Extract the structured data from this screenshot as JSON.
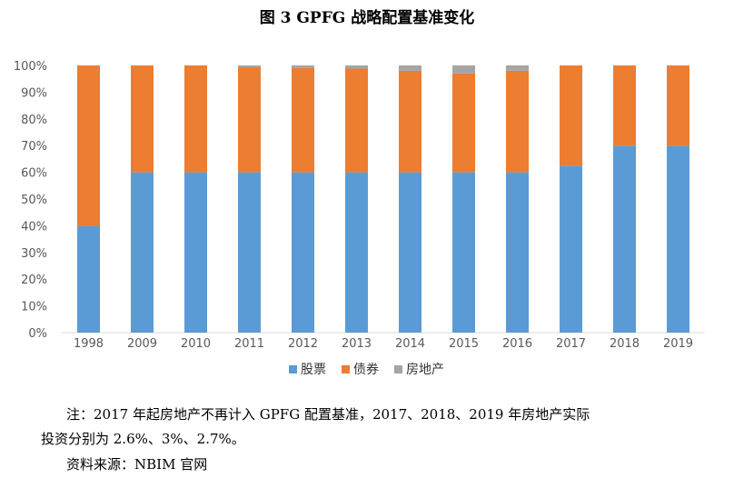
{
  "chart_data": {
    "type": "bar",
    "stacked": true,
    "title": "图 3  GPFG 战略配置基准变化",
    "categories": [
      "1998",
      "2009",
      "2010",
      "2011",
      "2012",
      "2013",
      "2014",
      "2015",
      "2016",
      "2017",
      "2018",
      "2019"
    ],
    "series": [
      {
        "name": "股票",
        "color": "#5B9BD5",
        "values": [
          40,
          60,
          60,
          60,
          60,
          60,
          60,
          60,
          60,
          62.5,
          70,
          70
        ]
      },
      {
        "name": "债券",
        "color": "#ED7D31",
        "values": [
          60,
          40,
          40,
          39.3,
          39,
          38.8,
          38,
          37,
          38,
          37.5,
          30,
          30
        ]
      },
      {
        "name": "房地产",
        "color": "#A5A5A5",
        "values": [
          0,
          0,
          0,
          0.7,
          1,
          1.2,
          2,
          3,
          2,
          0,
          0,
          0
        ]
      }
    ],
    "ylim": [
      0,
      100
    ],
    "yticks": [
      "0%",
      "10%",
      "20%",
      "30%",
      "40%",
      "50%",
      "60%",
      "70%",
      "80%",
      "90%",
      "100%"
    ],
    "xlabel": "",
    "ylabel": "",
    "legend_position": "bottom"
  },
  "notes": {
    "line1": "注：2017 年起房地产不再计入 GPFG 配置基准，2017、2018、2019 年房地产实际",
    "line2": "投资分别为 2.6%、3%、2.7%。",
    "source": "资料来源：NBIM 官网"
  }
}
